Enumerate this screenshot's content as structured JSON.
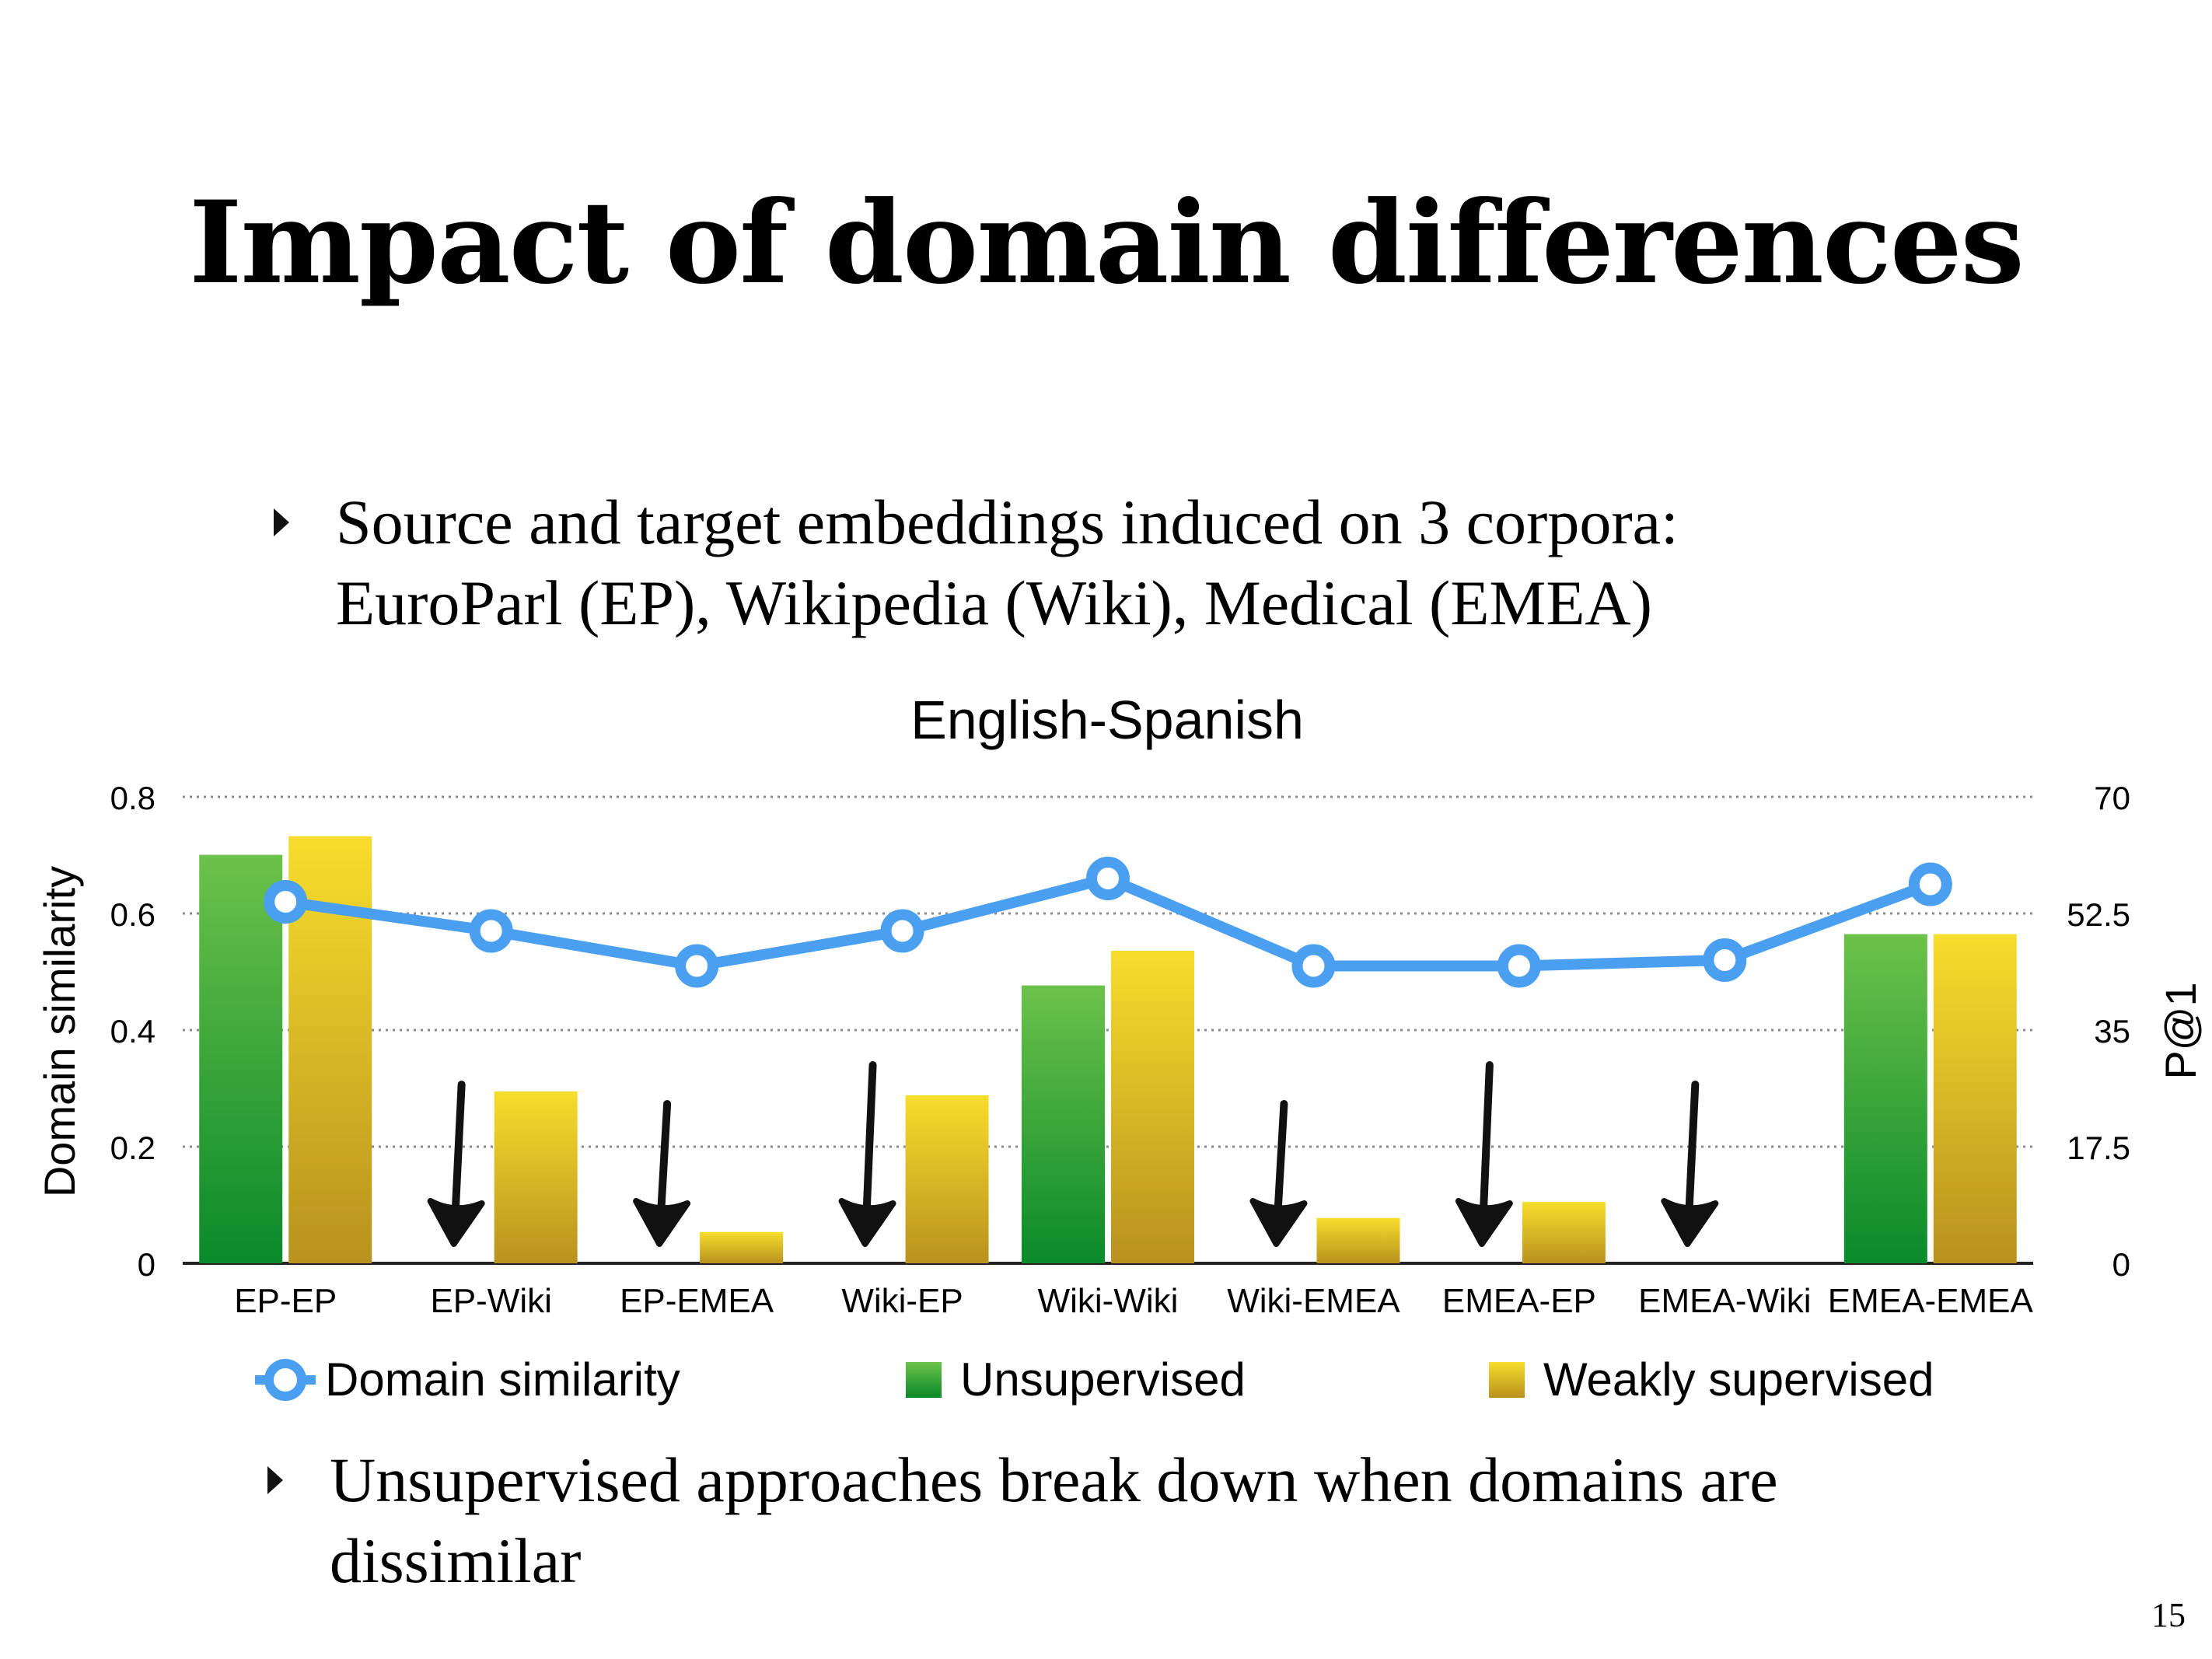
{
  "slide": {
    "title": "Impact of domain differences",
    "bullet1_line1": "Source and target embeddings induced on 3 corpora:",
    "bullet1_line2": "EuroParl (EP), Wikipedia (Wiki), Medical (EMEA)",
    "bullet2_line1": "Unsupervised approaches break down when domains are",
    "bullet2_line2": "dissimilar",
    "page_number": "15"
  },
  "legend": {
    "domain_similarity": "Domain similarity",
    "unsupervised": "Unsupervised",
    "weakly_supervised": "Weakly supervised"
  },
  "colors": {
    "line": "#4a9ff0",
    "green_top": "#6cc24a",
    "green_bottom": "#0a8a2a",
    "yellow_top": "#f7dd2c",
    "yellow_bottom": "#b8921e",
    "arrow": "#111111"
  },
  "chart_data": {
    "type": "bar",
    "title": "English-Spanish",
    "categories": [
      "EP-EP",
      "EP-Wiki",
      "EP-EMEA",
      "Wiki-EP",
      "Wiki-Wiki",
      "Wiki-EMEA",
      "EMEA-EP",
      "EMEA-Wiki",
      "EMEA-EMEA"
    ],
    "series": [
      {
        "name": "Unsupervised",
        "type": "bar",
        "axis": "right",
        "values": [
          61.3,
          0,
          0,
          0,
          41.7,
          0,
          0,
          0,
          49.4
        ]
      },
      {
        "name": "Weakly supervised",
        "type": "bar",
        "axis": "right",
        "values": [
          64.1,
          25.8,
          4.7,
          25.2,
          46.9,
          6.8,
          9.2,
          0,
          49.4
        ]
      },
      {
        "name": "Domain similarity",
        "type": "line",
        "axis": "left",
        "values": [
          0.62,
          0.57,
          0.51,
          0.57,
          0.66,
          0.51,
          0.51,
          0.52,
          0.65
        ]
      }
    ],
    "left_axis": {
      "label": "Domain similarity",
      "ylim": [
        0,
        0.8
      ],
      "ticks": [
        "0",
        "0.2",
        "0.4",
        "0.6",
        "0.8"
      ],
      "tick_values": [
        0,
        0.2,
        0.4,
        0.6,
        0.8
      ]
    },
    "right_axis": {
      "label": "P@1",
      "ylim": [
        0,
        70
      ],
      "ticks": [
        "0",
        "17.5",
        "35",
        "52.5",
        "70"
      ],
      "tick_values": [
        0,
        17.5,
        35,
        52.5,
        70
      ]
    },
    "grid": "dotted horizontal",
    "legend_position": "bottom",
    "annotations": "hand-drawn downward arrows over failing unsupervised pairs",
    "arrow_categories": [
      "EP-Wiki",
      "EP-EMEA",
      "Wiki-EP",
      "Wiki-EMEA",
      "EMEA-EP",
      "EMEA-Wiki"
    ]
  }
}
